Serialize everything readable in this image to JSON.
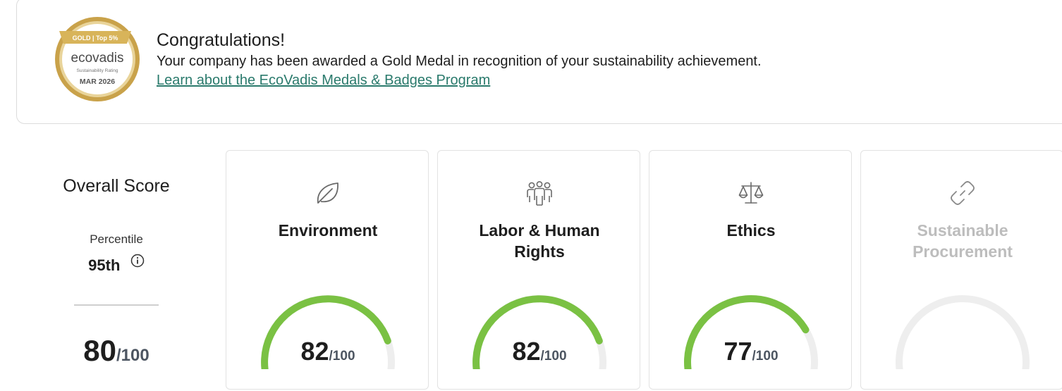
{
  "banner": {
    "medal": {
      "tier_label": "GOLD | Top 5%",
      "brand": "ecovadis",
      "caption": "Sustainability Rating",
      "date": "MAR 2026",
      "gold_color": "#c9a24a",
      "ribbon_color": "#d8b45a"
    },
    "title": "Congratulations!",
    "message": "Your company has been awarded a Gold Medal in recognition of your sustainability achievement.",
    "link": "Learn about the EcoVadis Medals & Badges Program",
    "link_color": "#2a7a6c"
  },
  "overall": {
    "title": "Overall Score",
    "percentile_label": "Percentile",
    "percentile_value": "95th",
    "info_icon": "info-icon",
    "score": "80",
    "out_of": "/100"
  },
  "theme": {
    "accent": "#7ac143",
    "track": "#eeeeee"
  },
  "cards": [
    {
      "title": "Environment",
      "icon": "leaf-icon",
      "score": "82",
      "out_of": "/100",
      "value": 82,
      "max": 100,
      "disabled": false
    },
    {
      "title": "Labor & Human Rights",
      "icon": "people-icon",
      "score": "82",
      "out_of": "/100",
      "value": 82,
      "max": 100,
      "disabled": false
    },
    {
      "title": "Ethics",
      "icon": "scales-icon",
      "score": "77",
      "out_of": "/100",
      "value": 77,
      "max": 100,
      "disabled": false
    },
    {
      "title": "Sustainable Procurement",
      "icon": "link-icon",
      "score": null,
      "out_of": null,
      "value": 0,
      "max": 100,
      "disabled": true
    }
  ]
}
